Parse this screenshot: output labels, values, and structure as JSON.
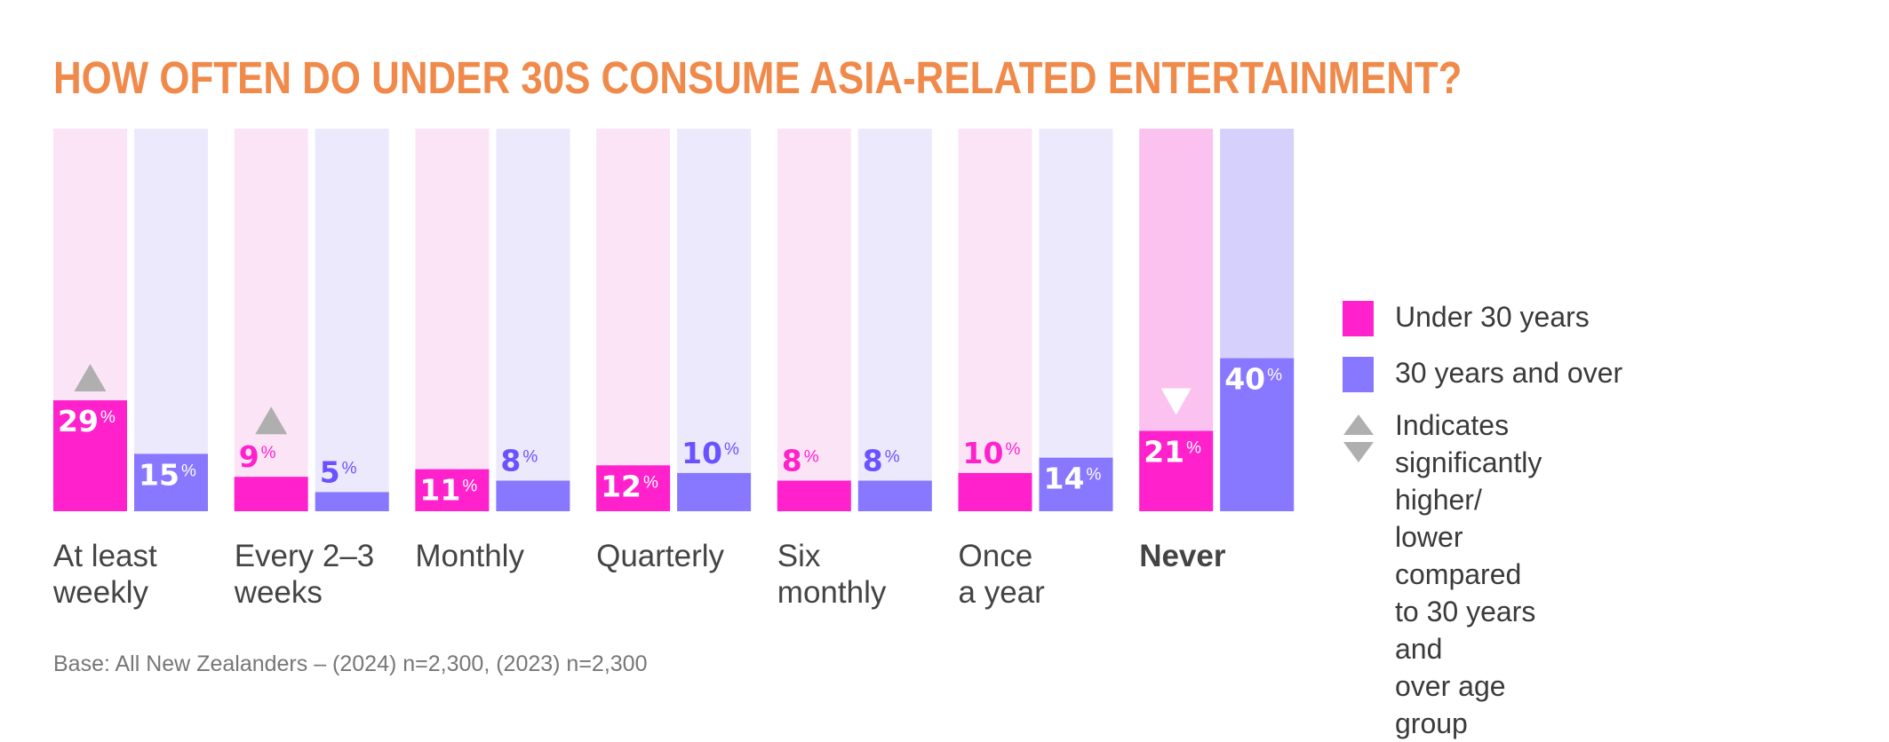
{
  "chart_data": {
    "type": "bar",
    "title": "HOW OFTEN DO UNDER 30S CONSUME ASIA-RELATED ENTERTAINMENT?",
    "xlabel": "",
    "ylabel": "",
    "ylim": [
      0,
      100
    ],
    "grid": false,
    "legend_position": "right",
    "categories": [
      "At least\nweekly",
      "Every 2–3\nweeks",
      "Monthly",
      "Quarterly",
      "Six\nmonthly",
      "Once\na year",
      "Never"
    ],
    "category_bold": [
      false,
      false,
      false,
      false,
      false,
      false,
      true
    ],
    "series": [
      {
        "name": "Under 30 years",
        "color": "#FF22CC",
        "track_color": "#FCE4F7",
        "highlight_track_color": "#FBC2F0",
        "values": [
          29,
          9,
          11,
          12,
          8,
          10,
          21
        ],
        "significance": [
          "higher",
          "higher",
          null,
          null,
          null,
          null,
          "lower"
        ]
      },
      {
        "name": "30 years and over",
        "color": "#8877FF",
        "track_color": "#ECE9FC",
        "highlight_track_color": "#D5D0FC",
        "values": [
          15,
          5,
          8,
          10,
          8,
          14,
          40
        ],
        "significance": [
          null,
          null,
          null,
          null,
          null,
          null,
          null
        ]
      }
    ],
    "value_suffix": "%",
    "label_colors": {
      "Under 30 years": "#FF22CC",
      "30 years and over": "#6A52FF"
    },
    "significance_color": "#AFAFAF"
  },
  "legend": {
    "items": [
      {
        "label": "Under 30 years",
        "color": "#FF22CC"
      },
      {
        "label": "30 years and over",
        "color": "#8877FF"
      }
    ],
    "significance_note": "Indicates significantly higher/\nlower compared to 30 years and\nover age group",
    "significance_icons": [
      "triangle-up-icon",
      "triangle-down-icon"
    ]
  },
  "footnote": "Base: All New Zealanders – (2024) n=2,300, (2023) n=2,300"
}
